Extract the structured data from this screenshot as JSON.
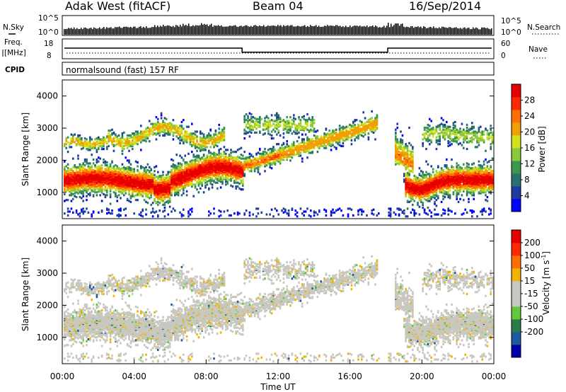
{
  "header": {
    "title": "Adak West (fitACF)",
    "beam": "Beam 04",
    "date": "16/Sep/2014"
  },
  "noise_panel": {
    "left_label": "N.Sky",
    "right_label": "N.Search",
    "left_ticks": [
      "10^5",
      "10^0"
    ],
    "right_ticks": [
      "10^5",
      "10^0"
    ]
  },
  "freq_panel": {
    "left_label_1": "Freq.",
    "left_label_2": "[MHz]",
    "right_label": "Nave",
    "left_ticks": [
      "18",
      "8"
    ],
    "right_ticks": [
      "60",
      "0"
    ],
    "freq_step_times_hours": [
      10.0,
      18.1
    ],
    "freq_levels_mhz": [
      13.5,
      10.6
    ]
  },
  "cpid": {
    "label": "CPID",
    "text": "normalsound (fast) 157 RF"
  },
  "colors": {
    "power": [
      "#0000ff",
      "#1e3ca0",
      "#2a6f6f",
      "#3c9650",
      "#8cc83c",
      "#d2e11e",
      "#f0a000",
      "#ff6e00",
      "#ff2800",
      "#e60000"
    ],
    "velocity": [
      "#0000aa",
      "#1e5aa0",
      "#2a7d4a",
      "#64c83c",
      "#c8c8c0",
      "#c8c8c0",
      "#f0b400",
      "#ff6e00",
      "#ff2800",
      "#e60000"
    ],
    "ground_scatter": "#c8c8c0"
  },
  "chart_data": [
    {
      "type": "heatmap",
      "name": "power",
      "xlabel": "",
      "ylabel": "Slant Range [km]",
      "xlim": [
        0,
        24
      ],
      "ylim": [
        180,
        4500
      ],
      "yticks": [
        "1000",
        "2000",
        "3000",
        "4000"
      ],
      "colorbar_label": "Power [dB]",
      "colorbar_ticks": [
        "4",
        "8",
        "12",
        "16",
        "20",
        "24",
        "28"
      ],
      "colorbar_range": [
        0,
        32
      ]
    },
    {
      "type": "heatmap",
      "name": "velocity",
      "xlabel": "Time UT",
      "ylabel": "Slant Range [km]",
      "xlim": [
        0,
        24
      ],
      "ylim": [
        180,
        4500
      ],
      "xticks": [
        "00:00",
        "04:00",
        "08:00",
        "12:00",
        "16:00",
        "20:00",
        "00:00"
      ],
      "yticks": [
        "1000",
        "2000",
        "3000",
        "4000"
      ],
      "colorbar_label": "Velocity [m s",
      "colorbar_label_sup": "-1",
      "colorbar_label_tail": "]",
      "colorbar_ticks": [
        "200",
        "100",
        "50",
        "15",
        "-15",
        "-50",
        "-100",
        "-200"
      ]
    }
  ]
}
